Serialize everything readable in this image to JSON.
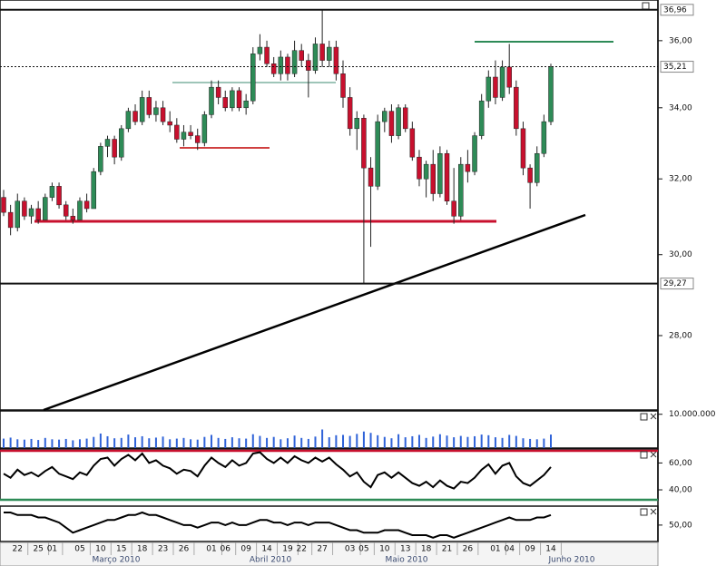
{
  "chart_data": [
    {
      "type": "candlestick",
      "categories": [
        null,
        null,
        "22",
        null,
        null,
        "25",
        null,
        "01",
        null,
        null,
        null,
        "05",
        null,
        null,
        "10",
        null,
        null,
        "15",
        null,
        null,
        "18",
        null,
        null,
        "23",
        null,
        null,
        "26",
        null,
        null,
        null,
        "01",
        null,
        "06",
        null,
        null,
        "09",
        null,
        null,
        "14",
        null,
        null,
        "19",
        null,
        "22",
        null,
        null,
        "27",
        null,
        null,
        null,
        "03",
        null,
        "05",
        null,
        null,
        "10",
        null,
        null,
        "13",
        null,
        null,
        "18",
        null,
        null,
        "21",
        null,
        null,
        "26",
        null,
        null,
        null,
        "01",
        null,
        "04",
        null,
        null,
        "09",
        null,
        null,
        "14"
      ],
      "months": [
        "Março 2010",
        "Abril 2010",
        "Maio 2010",
        "Junho 2010"
      ],
      "open": [
        31.5,
        31.1,
        30.7,
        31.4,
        31.0,
        31.2,
        30.9,
        31.5,
        31.8,
        31.3,
        31.0,
        30.9,
        31.4,
        31.2,
        32.2,
        32.9,
        33.1,
        32.6,
        33.4,
        33.9,
        33.6,
        34.3,
        33.8,
        34.0,
        33.6,
        33.5,
        33.1,
        33.3,
        33.2,
        33.0,
        33.8,
        34.6,
        34.3,
        34.0,
        34.5,
        34.0,
        34.2,
        35.6,
        35.8,
        35.3,
        35.0,
        35.5,
        35.0,
        35.7,
        35.4,
        35.1,
        35.9,
        35.4,
        35.8,
        35.0,
        34.3,
        33.4,
        33.7,
        32.3,
        31.8,
        33.6,
        33.9,
        33.2,
        34.0,
        33.4,
        32.6,
        32.0,
        32.4,
        31.6,
        32.7,
        31.4,
        31.0,
        32.4,
        32.2,
        33.2,
        34.2,
        34.9,
        34.3,
        35.2,
        34.6,
        33.4,
        32.3,
        31.9,
        32.7,
        33.6
      ],
      "high": [
        31.7,
        31.3,
        31.6,
        31.5,
        31.3,
        31.4,
        31.6,
        31.9,
        31.9,
        31.4,
        31.2,
        31.5,
        31.6,
        32.3,
        33.0,
        33.2,
        33.2,
        33.5,
        34.0,
        34.1,
        34.5,
        34.5,
        34.2,
        34.2,
        33.9,
        33.7,
        33.5,
        33.5,
        33.4,
        33.9,
        34.8,
        34.8,
        34.5,
        34.6,
        34.6,
        34.4,
        35.8,
        36.2,
        36.0,
        35.5,
        35.7,
        35.6,
        36.0,
        35.9,
        35.6,
        36.1,
        36.96,
        36.0,
        36.0,
        35.4,
        34.6,
        33.9,
        33.8,
        32.6,
        33.8,
        34.0,
        34.1,
        34.1,
        34.1,
        33.6,
        32.8,
        32.5,
        32.8,
        32.9,
        32.8,
        32.3,
        32.6,
        32.8,
        33.3,
        34.4,
        35.1,
        35.4,
        35.4,
        35.9,
        34.8,
        33.6,
        32.4,
        32.9,
        33.8,
        35.3
      ],
      "low": [
        31.0,
        30.5,
        30.6,
        30.9,
        30.8,
        30.8,
        30.9,
        31.4,
        31.2,
        30.9,
        30.8,
        30.9,
        31.1,
        31.2,
        32.1,
        32.6,
        32.4,
        32.5,
        33.3,
        33.5,
        33.5,
        33.7,
        33.6,
        33.5,
        33.3,
        33.0,
        32.9,
        33.1,
        32.8,
        32.9,
        33.7,
        34.1,
        33.9,
        33.9,
        33.9,
        33.8,
        34.1,
        35.4,
        35.2,
        34.9,
        34.8,
        34.8,
        34.9,
        35.2,
        34.3,
        35.0,
        35.2,
        35.2,
        34.8,
        34.0,
        33.2,
        32.8,
        29.27,
        30.2,
        31.7,
        33.3,
        33.0,
        33.1,
        33.3,
        32.5,
        31.8,
        31.5,
        31.4,
        31.5,
        31.3,
        30.8,
        30.9,
        31.9,
        32.1,
        33.1,
        34.0,
        34.1,
        34.2,
        34.4,
        33.2,
        32.1,
        31.2,
        31.8,
        32.6,
        33.5
      ],
      "close": [
        31.1,
        30.7,
        31.4,
        31.0,
        31.2,
        30.9,
        31.5,
        31.8,
        31.3,
        31.0,
        30.9,
        31.4,
        31.2,
        32.2,
        32.9,
        33.1,
        32.6,
        33.4,
        33.9,
        33.6,
        34.3,
        33.8,
        34.0,
        33.6,
        33.5,
        33.1,
        33.3,
        33.2,
        33.0,
        33.8,
        34.6,
        34.3,
        34.0,
        34.5,
        34.0,
        34.2,
        35.6,
        35.8,
        35.3,
        35.0,
        35.5,
        35.0,
        35.7,
        35.4,
        35.1,
        35.9,
        35.4,
        35.8,
        35.0,
        34.3,
        33.4,
        33.7,
        32.3,
        31.8,
        33.6,
        33.9,
        33.2,
        34.0,
        33.4,
        32.6,
        32.0,
        32.4,
        31.6,
        32.7,
        31.4,
        31.0,
        32.4,
        32.2,
        33.2,
        34.2,
        34.9,
        34.3,
        35.2,
        34.6,
        33.4,
        32.3,
        31.9,
        32.7,
        33.6,
        35.21
      ],
      "up_color": "#2e8b57",
      "down_color": "#c8102e",
      "log_scale": true,
      "ylim": [
        26.28,
        37.27
      ],
      "yticks": [
        {
          "value": 36,
          "label": "36,00"
        },
        {
          "value": 34,
          "label": "34,00"
        },
        {
          "value": 32,
          "label": "32,00"
        },
        {
          "value": 30,
          "label": "30,00"
        },
        {
          "value": 28,
          "label": "28,00"
        }
      ],
      "price_labels": [
        {
          "value": 36.96,
          "label": "36,96",
          "line_style": "solid",
          "color": "#111111"
        },
        {
          "value": 35.21,
          "label": "35,21",
          "line_style": "dotted",
          "color": "#c8102e"
        },
        {
          "value": 29.27,
          "label": "29,27",
          "line_style": "solid",
          "color": "#111111"
        }
      ]
    },
    {
      "type": "bar",
      "values": [
        2800000,
        3100000,
        2600000,
        2500000,
        2700000,
        2400000,
        3000000,
        2600000,
        2500000,
        2700000,
        2300000,
        2600000,
        2800000,
        3300000,
        4300000,
        3500000,
        2900000,
        3000000,
        4000000,
        3200000,
        3500000,
        2900000,
        3100000,
        3400000,
        2600000,
        2800000,
        3000000,
        2600000,
        2500000,
        3300000,
        3900000,
        3000000,
        2700000,
        3200000,
        2900000,
        2800000,
        4100000,
        3600000,
        3000000,
        3300000,
        2600000,
        2900000,
        3700000,
        3000000,
        2700000,
        3400000,
        5500000,
        3200000,
        3800000,
        3900000,
        3600000,
        4200000,
        4900000,
        4500000,
        3800000,
        3300000,
        2900000,
        4100000,
        3200000,
        3500000,
        3900000,
        3000000,
        3400000,
        4100000,
        3700000,
        3200000,
        3600000,
        3300000,
        3500000,
        4000000,
        3800000,
        3200000,
        3000000,
        3900000,
        3600000,
        2900000,
        2700000,
        2600000,
        2800000,
        4000000
      ],
      "color": "#2f62d8",
      "ylim": [
        0,
        11000000
      ],
      "yticks": [
        {
          "value": 10000000,
          "label": "10.000.000"
        }
      ]
    },
    {
      "type": "line",
      "values": [
        52,
        49,
        55,
        51,
        53,
        50,
        54,
        57,
        52,
        50,
        48,
        53,
        51,
        58,
        63,
        64,
        58,
        63,
        66,
        62,
        67,
        60,
        62,
        58,
        56,
        52,
        55,
        54,
        50,
        58,
        64,
        60,
        57,
        62,
        58,
        60,
        67,
        68,
        63,
        60,
        64,
        60,
        65,
        62,
        60,
        64,
        61,
        64,
        59,
        55,
        50,
        53,
        46,
        42,
        51,
        53,
        49,
        53,
        49,
        45,
        43,
        46,
        42,
        47,
        43,
        41,
        46,
        45,
        49,
        55,
        59,
        52,
        58,
        60,
        50,
        45,
        43,
        47,
        51,
        57
      ],
      "color": "#000000",
      "ylim": [
        32.6,
        70.4
      ],
      "yticks": [
        {
          "value": 60,
          "label": "60,00"
        },
        {
          "value": 40,
          "label": "40,00"
        }
      ]
    },
    {
      "type": "line",
      "values": [
        55,
        55,
        54,
        54,
        54,
        53,
        53,
        52,
        51,
        49,
        47,
        48,
        49,
        50,
        51,
        52,
        52,
        53,
        54,
        54,
        55,
        54,
        54,
        53,
        52,
        51,
        50,
        50,
        49,
        50,
        51,
        51,
        50,
        51,
        50,
        50,
        51,
        52,
        52,
        51,
        51,
        50,
        51,
        51,
        50,
        51,
        51,
        51,
        50,
        49,
        48,
        48,
        47,
        47,
        47,
        48,
        48,
        48,
        47,
        46,
        46,
        46,
        45,
        46,
        46,
        45,
        46,
        47,
        48,
        49,
        50,
        51,
        52,
        53,
        52,
        52,
        52,
        53,
        53,
        54
      ],
      "color": "#000000",
      "ylim": [
        43.5,
        57.5
      ],
      "yticks": [
        {
          "value": 50,
          "label": "50,00"
        }
      ]
    }
  ]
}
